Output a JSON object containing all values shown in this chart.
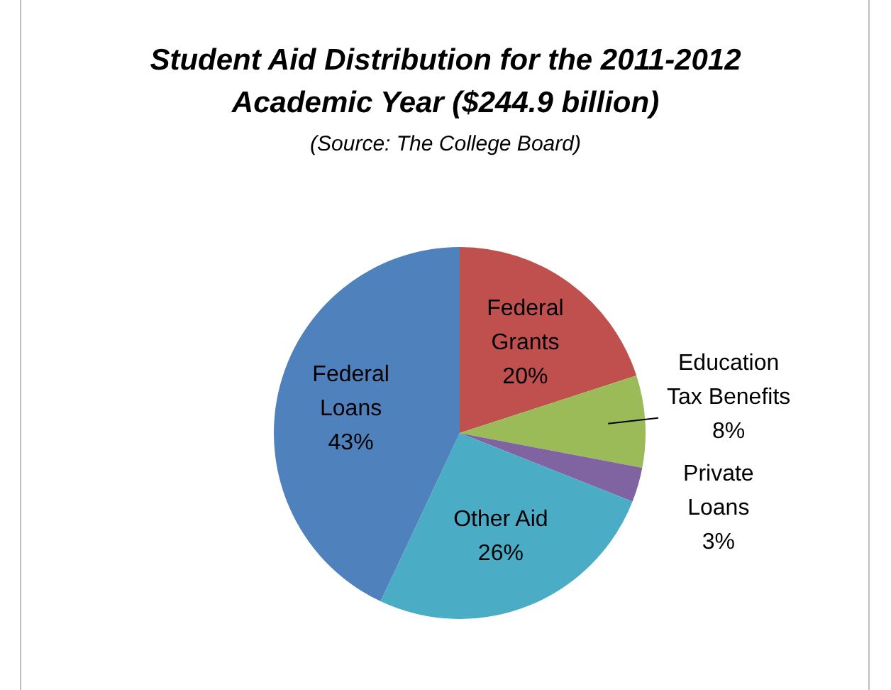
{
  "chart_data": {
    "type": "pie",
    "title": "Student Aid Distribution for the 2011-2012 Academic Year ($244.9 billion)",
    "subtitle": "(Source: The College Board)",
    "categories": [
      "Federal Grants",
      "Education Tax Benefits",
      "Private Loans",
      "Other Aid",
      "Federal Loans"
    ],
    "values": [
      20,
      8,
      3,
      26,
      43
    ],
    "colors": [
      "#c0504d",
      "#9bbb59",
      "#8064a2",
      "#4bacc6",
      "#4f81bd"
    ],
    "value_labels": [
      "20%",
      "8%",
      "3%",
      "26%",
      "43%"
    ],
    "legend": false
  }
}
